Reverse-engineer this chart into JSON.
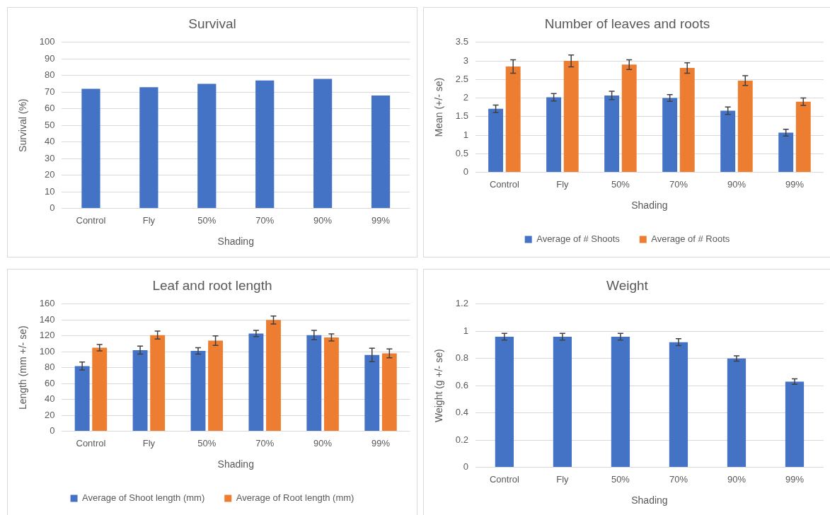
{
  "chart_data": [
    {
      "type": "bar",
      "title": "Survival",
      "xlabel": "Shading",
      "ylabel": "Survival (%)",
      "categories": [
        "Control",
        "Fly",
        "50%",
        "70%",
        "90%",
        "99%"
      ],
      "series": [
        {
          "color": "#4472c4",
          "values": [
            72,
            73,
            75,
            77,
            78,
            68
          ]
        }
      ],
      "ylim": [
        0,
        100
      ],
      "yticks": [
        0,
        10,
        20,
        30,
        40,
        50,
        60,
        70,
        80,
        90,
        100
      ],
      "grid": "y"
    },
    {
      "type": "bar",
      "title": "Number of leaves and roots",
      "xlabel": "Shading",
      "ylabel": "Mean (+/- se)",
      "categories": [
        "Control",
        "Fly",
        "50%",
        "70%",
        "90%",
        "99%"
      ],
      "series": [
        {
          "name": "Average of # Shoots",
          "color": "#4472c4",
          "values": [
            1.71,
            2.02,
            2.07,
            2.0,
            1.66,
            1.07
          ],
          "errors": [
            0.1,
            0.1,
            0.11,
            0.09,
            0.1,
            0.09
          ]
        },
        {
          "name": "Average of # Roots",
          "color": "#ed7d31",
          "values": [
            2.85,
            3.0,
            2.9,
            2.81,
            2.47,
            1.9
          ],
          "errors": [
            0.18,
            0.16,
            0.13,
            0.14,
            0.13,
            0.1
          ]
        }
      ],
      "ylim": [
        0,
        3.5
      ],
      "yticks": [
        0,
        0.5,
        1,
        1.5,
        2,
        2.5,
        3,
        3.5
      ],
      "grid": "y",
      "legend": "bottom"
    },
    {
      "type": "bar",
      "title": "Leaf and root length",
      "xlabel": "Shading",
      "ylabel": "Length (mm +/- se)",
      "categories": [
        "Control",
        "Fly",
        "50%",
        "70%",
        "90%",
        "99%"
      ],
      "series": [
        {
          "name": "Average of Shoot length (mm)",
          "color": "#4472c4",
          "values": [
            82,
            102,
            101,
            123,
            121,
            96
          ],
          "errors": [
            5,
            5,
            4,
            4,
            6,
            8.5
          ]
        },
        {
          "name": "Average of Root length (mm)",
          "color": "#ed7d31",
          "values": [
            105,
            121,
            114,
            140,
            118,
            98
          ],
          "errors": [
            4,
            5,
            6,
            5,
            4.5,
            5.5
          ]
        }
      ],
      "ylim": [
        0,
        160
      ],
      "yticks": [
        0,
        20,
        40,
        60,
        80,
        100,
        120,
        140,
        160
      ],
      "grid": "y",
      "legend": "bottom"
    },
    {
      "type": "bar",
      "title": "Weight",
      "xlabel": "Shading",
      "ylabel": "Weight (g +/- se)",
      "categories": [
        "Control",
        "Fly",
        "50%",
        "70%",
        "90%",
        "99%"
      ],
      "series": [
        {
          "color": "#4472c4",
          "values": [
            0.96,
            0.96,
            0.96,
            0.92,
            0.8,
            0.63
          ],
          "errors": [
            0.025,
            0.025,
            0.025,
            0.025,
            0.02,
            0.02
          ]
        }
      ],
      "ylim": [
        0,
        1.2
      ],
      "yticks": [
        0,
        0.2,
        0.4,
        0.6,
        0.8,
        1,
        1.2
      ],
      "grid": "y"
    }
  ]
}
